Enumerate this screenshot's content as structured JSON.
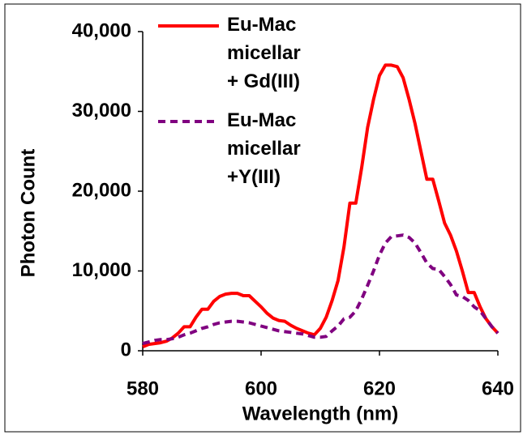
{
  "chart_data": {
    "type": "line",
    "xlabel": "Wavelength (nm)",
    "ylabel": "Photon Count",
    "x": [
      580,
      581,
      582,
      583,
      584,
      585,
      586,
      587,
      588,
      589,
      590,
      591,
      592,
      593,
      594,
      595,
      596,
      597,
      598,
      599,
      600,
      601,
      602,
      603,
      604,
      605,
      606,
      607,
      608,
      609,
      610,
      611,
      612,
      613,
      614,
      615,
      616,
      617,
      618,
      619,
      620,
      621,
      622,
      623,
      624,
      625,
      626,
      627,
      628,
      629,
      630,
      631,
      632,
      633,
      634,
      635,
      636,
      637,
      638,
      639,
      640
    ],
    "series": [
      {
        "name": "Eu-Mac micellar + Gd(III)",
        "color": "#ff0000",
        "dash": false,
        "values": [
          500,
          800,
          900,
          1000,
          1200,
          1600,
          2200,
          3000,
          3000,
          4200,
          5200,
          5200,
          6200,
          6800,
          7100,
          7200,
          7200,
          6900,
          6900,
          6200,
          5500,
          4700,
          4100,
          3800,
          3700,
          3200,
          2800,
          2500,
          2200,
          2000,
          2800,
          4200,
          6300,
          8800,
          13000,
          18500,
          18500,
          23000,
          28000,
          31500,
          34500,
          35800,
          35800,
          35600,
          34200,
          31500,
          28500,
          25000,
          21500,
          21500,
          18800,
          16000,
          14500,
          12500,
          10000,
          7300,
          7300,
          5500,
          4000,
          3000,
          2200
        ]
      },
      {
        "name": "Eu-Mac micellar +Y(III)",
        "color": "#800080",
        "dash": true,
        "values": [
          900,
          1100,
          1300,
          1400,
          1400,
          1500,
          1700,
          2000,
          2200,
          2500,
          2800,
          3000,
          3300,
          3500,
          3600,
          3700,
          3700,
          3600,
          3500,
          3300,
          3100,
          2900,
          2700,
          2500,
          2400,
          2300,
          2200,
          2100,
          1900,
          1700,
          1700,
          1800,
          2500,
          3100,
          4000,
          4200,
          5000,
          6500,
          8200,
          10000,
          12000,
          13500,
          14300,
          14400,
          14500,
          14200,
          13500,
          12300,
          11000,
          10300,
          10200,
          9300,
          8300,
          7000,
          6800,
          6300,
          5500,
          5000,
          4000,
          3000,
          2200
        ]
      }
    ],
    "xlim": [
      580,
      640
    ],
    "xticks": [
      580,
      600,
      620,
      640
    ],
    "ylim": [
      0,
      40000
    ],
    "yticks": [
      0,
      {
        "value": 10000,
        "label": "10,000"
      },
      {
        "value": 20000,
        "label": "20,000"
      },
      {
        "value": 30000,
        "label": "30,000"
      },
      {
        "value": 40000,
        "label": "40,000"
      }
    ],
    "legend": "top"
  }
}
